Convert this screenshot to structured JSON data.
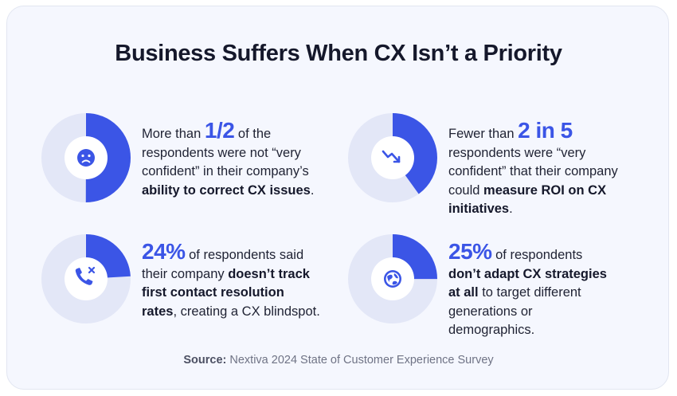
{
  "title": "Business Suffers When CX Isn’t a Priority",
  "colors": {
    "accent": "#3b55e6",
    "track": "#e3e7f7",
    "background": "#f5f7fe"
  },
  "stats": [
    {
      "icon": "sad-face-icon",
      "pre": "More than ",
      "big": "1/2",
      "mid": " of the respondents were not “very confident” in their company’s ",
      "bold": "ability to correct CX issues",
      "post": "."
    },
    {
      "icon": "trend-down-icon",
      "pre": "Fewer than ",
      "big": "2 in 5",
      "mid": " respondents were “very confident” that their company could ",
      "bold": "measure ROI on CX initiatives",
      "post": "."
    },
    {
      "icon": "phone-missed-icon",
      "pre": "",
      "big": "24%",
      "mid": " of respondents said their company ",
      "bold": "doesn’t track first contact resolution rates",
      "post": ", creating a CX blindspot."
    },
    {
      "icon": "globe-icon",
      "pre": "",
      "big": "25%",
      "mid": " of respondents ",
      "bold": "don’t adapt CX strategies at all",
      "post": " to target different generations or demographics."
    }
  ],
  "chart_data": {
    "type": "pie",
    "categories": [
      "1/2",
      "2 in 5",
      "24%",
      "25%"
    ],
    "values": [
      0.5,
      0.4,
      0.24,
      0.25
    ]
  },
  "source": {
    "label": "Source:",
    "text": " Nextiva 2024 State of Customer Experience Survey"
  }
}
